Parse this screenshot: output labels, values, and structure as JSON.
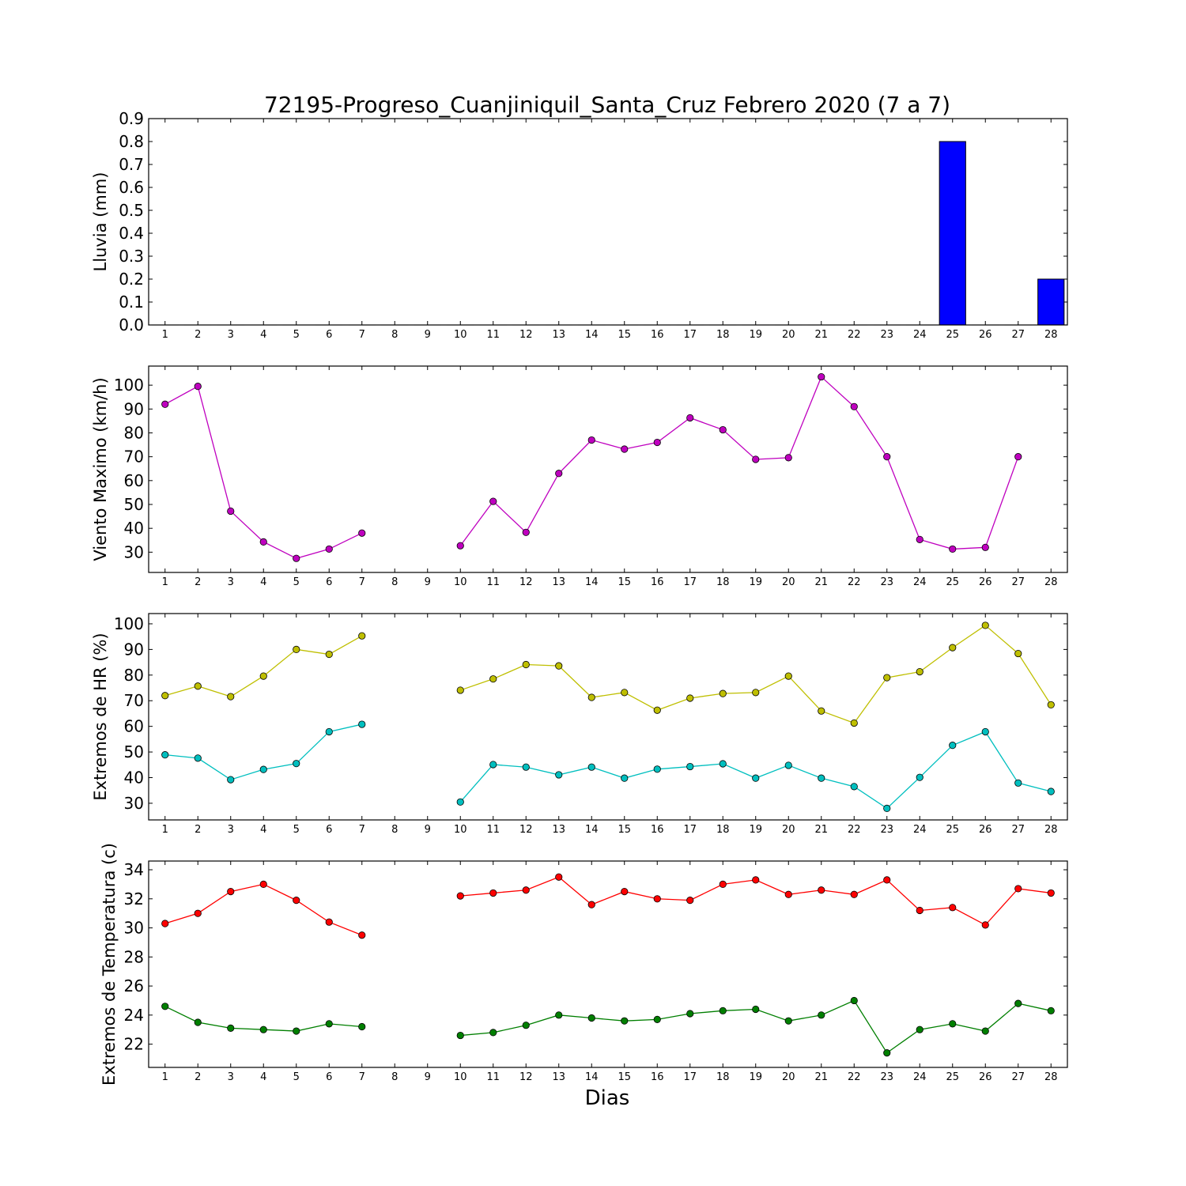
{
  "chart_data": {
    "title": "72195-Progreso_Cuanjiniquil_Santa_Cruz Febrero 2020  (7 a 7)",
    "xlabel": "Dias",
    "x": [
      1,
      2,
      3,
      4,
      5,
      6,
      7,
      8,
      9,
      10,
      11,
      12,
      13,
      14,
      15,
      16,
      17,
      18,
      19,
      20,
      21,
      22,
      23,
      24,
      25,
      26,
      27,
      28
    ],
    "xlim": [
      0.5,
      28.5
    ],
    "grid": false,
    "panels": [
      {
        "type": "bar",
        "ylabel": "Lluvia (mm)",
        "ylim": [
          0,
          0.9
        ],
        "yticks": [
          0.0,
          0.1,
          0.2,
          0.3,
          0.4,
          0.5,
          0.6,
          0.7,
          0.8,
          0.9
        ],
        "ytick_labels": [
          "0.0",
          "0.1",
          "0.2",
          "0.3",
          "0.4",
          "0.5",
          "0.6",
          "0.7",
          "0.8",
          "0.9"
        ],
        "series": [
          {
            "color": "#0000ff",
            "values": [
              0,
              0,
              0,
              0,
              0,
              0,
              0,
              0,
              0,
              0,
              0,
              0,
              0,
              0,
              0,
              0,
              0,
              0,
              0,
              0,
              0,
              0,
              0,
              0,
              0.8,
              0,
              0,
              0.2
            ]
          }
        ]
      },
      {
        "type": "line",
        "ylabel": "Viento Maximo (km/h)",
        "ylim": [
          21.5,
          108
        ],
        "yticks": [
          30,
          40,
          50,
          60,
          70,
          80,
          90,
          100
        ],
        "ytick_labels": [
          "30",
          "40",
          "50",
          "60",
          "70",
          "80",
          "90",
          "100"
        ],
        "series": [
          {
            "color": "#bf00bf",
            "values": [
              92,
              99.5,
              47.2,
              34.3,
              27.4,
              31.3,
              38,
              null,
              null,
              32.7,
              51.3,
              38.3,
              63,
              77,
              73.2,
              76,
              86.3,
              81.3,
              68.9,
              69.6,
              103.5,
              91,
              70,
              35.3,
              31.3,
              32,
              70,
              null
            ]
          }
        ]
      },
      {
        "type": "line",
        "ylabel": "Extremos de HR (%)",
        "ylim": [
          23.5,
          104
        ],
        "yticks": [
          30,
          40,
          50,
          60,
          70,
          80,
          90,
          100
        ],
        "ytick_labels": [
          "30",
          "40",
          "50",
          "60",
          "70",
          "80",
          "90",
          "100"
        ],
        "series": [
          {
            "color": "#bfbf00",
            "values": [
              72,
              75.7,
              71.6,
              79.6,
              90,
              88.1,
              95.3,
              null,
              null,
              74.1,
              78.5,
              84.1,
              83.6,
              71.3,
              73.2,
              66.3,
              71,
              72.8,
              73.2,
              79.6,
              66,
              61.3,
              79,
              81.3,
              90.7,
              99.4,
              88.4,
              68.4
            ]
          },
          {
            "color": "#00bfbf",
            "values": [
              48.9,
              47.6,
              39.2,
              43.2,
              45.5,
              57.9,
              60.8,
              null,
              null,
              30.5,
              45.1,
              44.1,
              41.1,
              44.1,
              39.8,
              43.3,
              44.3,
              45.4,
              39.8,
              44.8,
              39.8,
              36.5,
              28,
              40.1,
              52.6,
              57.9,
              37.9,
              34.6
            ]
          }
        ]
      },
      {
        "type": "line",
        "ylabel": "Extremos de Temperatura (c)",
        "ylim": [
          20.4,
          34.6
        ],
        "yticks": [
          22,
          24,
          26,
          28,
          30,
          32,
          34
        ],
        "ytick_labels": [
          "22",
          "24",
          "26",
          "28",
          "30",
          "32",
          "34"
        ],
        "series": [
          {
            "color": "#ff0000",
            "values": [
              30.3,
              31,
              32.5,
              33,
              31.9,
              30.4,
              29.5,
              null,
              null,
              32.2,
              32.4,
              32.6,
              33.5,
              31.6,
              32.5,
              32,
              31.9,
              33,
              33.3,
              32.3,
              32.6,
              32.3,
              33.3,
              31.2,
              31.4,
              30.2,
              32.7,
              32.4
            ]
          },
          {
            "color": "#007f00",
            "values": [
              24.6,
              23.5,
              23.1,
              23,
              22.9,
              23.4,
              23.2,
              null,
              null,
              22.6,
              22.8,
              23.3,
              24,
              23.8,
              23.6,
              23.7,
              24.1,
              24.3,
              24.4,
              23.6,
              24,
              25,
              21.4,
              23,
              23.4,
              22.9,
              24.8,
              24.3
            ]
          }
        ]
      }
    ]
  }
}
